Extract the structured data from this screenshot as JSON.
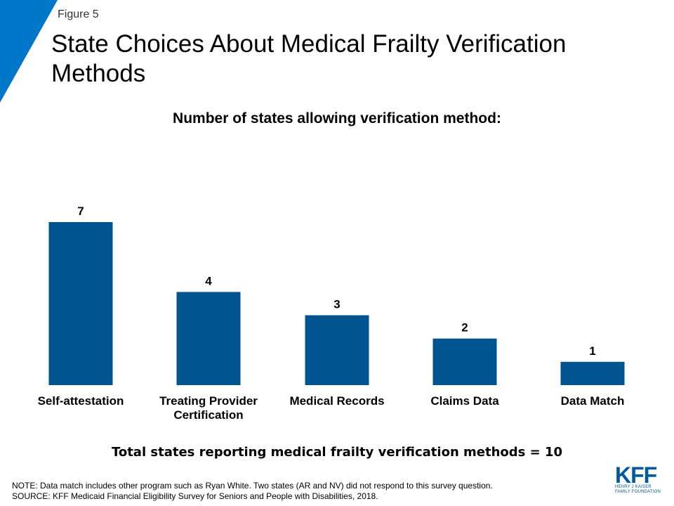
{
  "header": {
    "figure_label": "Figure 5",
    "title": "State Choices About Medical Frailty Verification Methods"
  },
  "colors": {
    "accent": "#0077C8",
    "bar": "#00548F"
  },
  "chart_data": {
    "type": "bar",
    "title": "Number of states allowing verification method:",
    "categories": [
      "Self-attestation",
      "Treating Provider Certification",
      "Medical Records",
      "Claims Data",
      "Data Match"
    ],
    "category_lines": [
      [
        "Self-attestation"
      ],
      [
        "Treating Provider",
        "Certification"
      ],
      [
        "Medical Records"
      ],
      [
        "Claims Data"
      ],
      [
        "Data Match"
      ]
    ],
    "values": [
      7,
      4,
      3,
      2,
      1
    ],
    "data_labels": [
      "7",
      "4",
      "3",
      "2",
      "1"
    ],
    "ylim": [
      0,
      7
    ],
    "grid": false,
    "xlabel": "",
    "ylabel": ""
  },
  "summary": "Total states reporting medical frailty verification methods = 10",
  "notes": {
    "note": "NOTE: Data match includes other program such as Ryan White. Two states (AR and NV) did not respond to this survey question.",
    "source": "SOURCE: KFF Medicaid Financial Eligibility Survey for Seniors and People with Disabilities, 2018."
  },
  "logo": {
    "letters": "KFF",
    "line1": "HENRY J KAISER",
    "line2": "FAMILY FOUNDATION"
  }
}
